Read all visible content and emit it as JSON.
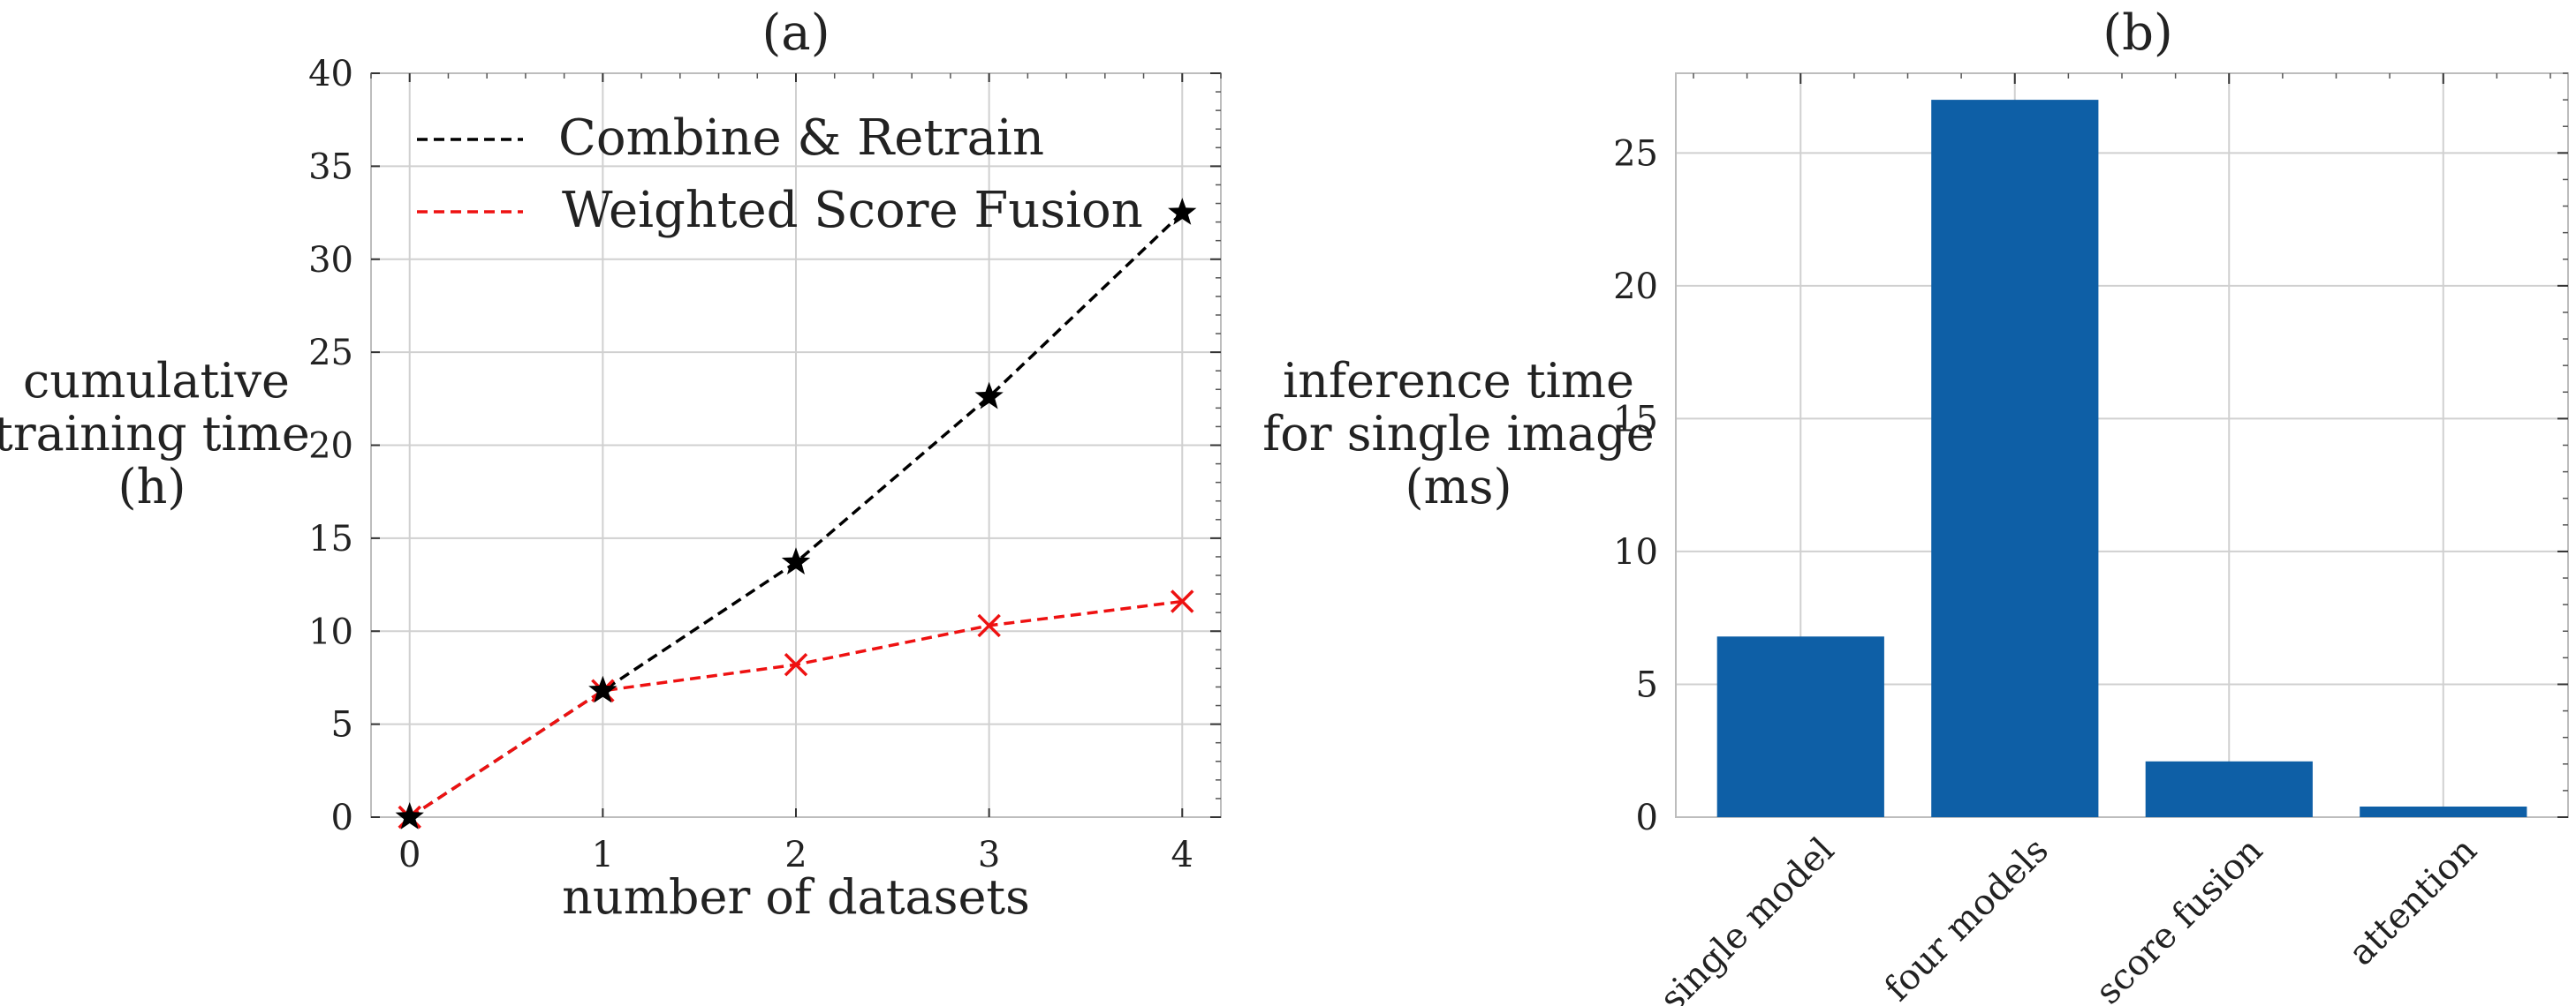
{
  "chart_data": [
    {
      "type": "line",
      "title": "(a)",
      "xlabel": "number of datasets",
      "ylabel_lines": [
        "cumulative",
        "training time",
        "(h)"
      ],
      "x": [
        0,
        1,
        2,
        3,
        4
      ],
      "xlim": [
        -0.2,
        4.2
      ],
      "ylim": [
        0,
        40
      ],
      "xticks": [
        0,
        1,
        2,
        3,
        4
      ],
      "yticks": [
        0,
        5,
        10,
        15,
        20,
        25,
        30,
        35,
        40
      ],
      "grid": true,
      "legend_position": "top-left",
      "series": [
        {
          "name": "Combine & Retrain",
          "values": [
            0,
            6.8,
            13.7,
            22.6,
            32.5
          ],
          "color": "#000000",
          "marker": "star",
          "linestyle": "dashed"
        },
        {
          "name": "Weighted Score Fusion",
          "values": [
            0,
            6.8,
            8.2,
            10.3,
            11.6
          ],
          "color": "#ee1111",
          "marker": "x",
          "linestyle": "dashed"
        }
      ]
    },
    {
      "type": "bar",
      "title": "(b)",
      "xlabel": "",
      "ylabel_lines": [
        "inference time",
        "for single image",
        "(ms)"
      ],
      "categories": [
        "single model",
        "four models",
        "score fusion",
        "attention"
      ],
      "values": [
        6.8,
        27.0,
        2.1,
        0.4
      ],
      "ylim": [
        0,
        28
      ],
      "yticks": [
        0,
        5,
        10,
        15,
        20,
        25
      ],
      "grid": true,
      "bar_color": "#0e5fa6"
    }
  ]
}
